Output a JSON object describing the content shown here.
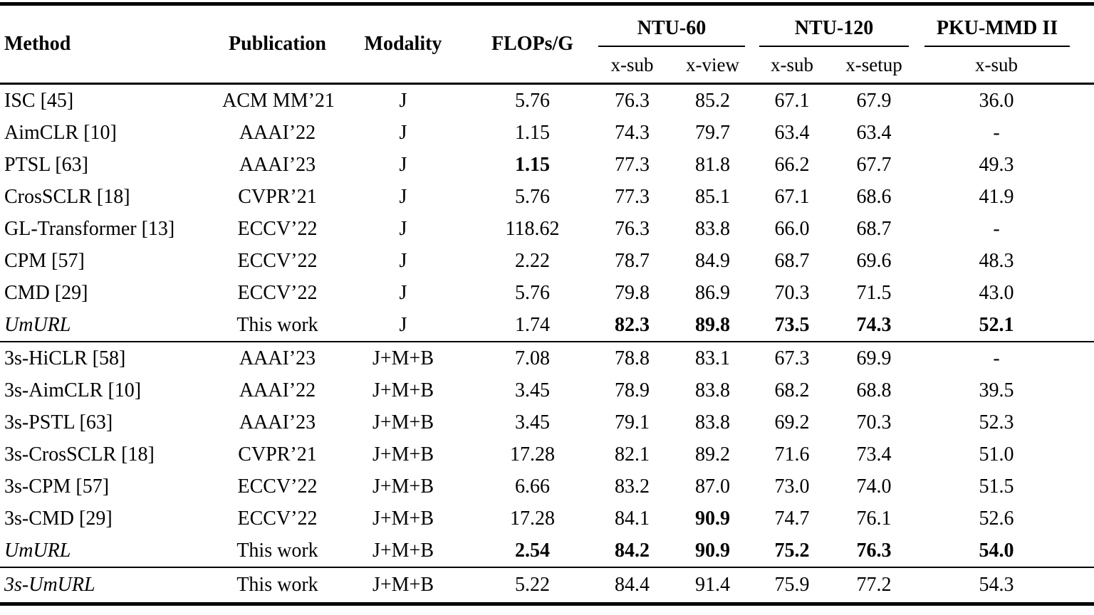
{
  "page": {
    "background": "#ffffff",
    "text_color": "#000000"
  },
  "table": {
    "headers": {
      "method": "Method",
      "publication": "Publication",
      "modality": "Modality",
      "flops": "FLOPs/G"
    },
    "groups": [
      {
        "label": "NTU-60",
        "cols": [
          "x-sub",
          "x-view"
        ]
      },
      {
        "label": "NTU-120",
        "cols": [
          "x-sub",
          "x-setup"
        ]
      },
      {
        "label": "PKU-MMD II",
        "cols": [
          "x-sub"
        ]
      }
    ],
    "sections": [
      {
        "rows": [
          {
            "method": "ISC [45]",
            "italic": false,
            "publication": "ACM MM’21",
            "modality": "J",
            "values": [
              "5.76",
              "76.3",
              "85.2",
              "67.1",
              "67.9",
              "36.0"
            ],
            "bold": [
              0,
              0,
              0,
              0,
              0,
              0
            ]
          },
          {
            "method": "AimCLR [10]",
            "italic": false,
            "publication": "AAAI’22",
            "modality": "J",
            "values": [
              "1.15",
              "74.3",
              "79.7",
              "63.4",
              "63.4",
              "-"
            ],
            "bold": [
              0,
              0,
              0,
              0,
              0,
              0
            ]
          },
          {
            "method": "PTSL [63]",
            "italic": false,
            "publication": "AAAI’23",
            "modality": "J",
            "values": [
              "1.15",
              "77.3",
              "81.8",
              "66.2",
              "67.7",
              "49.3"
            ],
            "bold": [
              1,
              0,
              0,
              0,
              0,
              0
            ]
          },
          {
            "method": "CrosSCLR [18]",
            "italic": false,
            "publication": "CVPR’21",
            "modality": "J",
            "values": [
              "5.76",
              "77.3",
              "85.1",
              "67.1",
              "68.6",
              "41.9"
            ],
            "bold": [
              0,
              0,
              0,
              0,
              0,
              0
            ]
          },
          {
            "method": "GL-Transformer [13]",
            "italic": false,
            "publication": "ECCV’22",
            "modality": "J",
            "values": [
              "118.62",
              "76.3",
              "83.8",
              "66.0",
              "68.7",
              "-"
            ],
            "bold": [
              0,
              0,
              0,
              0,
              0,
              0
            ]
          },
          {
            "method": "CPM [57]",
            "italic": false,
            "publication": "ECCV’22",
            "modality": "J",
            "values": [
              "2.22",
              "78.7",
              "84.9",
              "68.7",
              "69.6",
              "48.3"
            ],
            "bold": [
              0,
              0,
              0,
              0,
              0,
              0
            ]
          },
          {
            "method": "CMD [29]",
            "italic": false,
            "publication": "ECCV’22",
            "modality": "J",
            "values": [
              "5.76",
              "79.8",
              "86.9",
              "70.3",
              "71.5",
              "43.0"
            ],
            "bold": [
              0,
              0,
              0,
              0,
              0,
              0
            ]
          },
          {
            "method": "UmURL",
            "italic": true,
            "publication": "This work",
            "modality": "J",
            "values": [
              "1.74",
              "82.3",
              "89.8",
              "73.5",
              "74.3",
              "52.1"
            ],
            "bold": [
              0,
              1,
              1,
              1,
              1,
              1
            ]
          }
        ]
      },
      {
        "rows": [
          {
            "method": "3s-HiCLR [58]",
            "italic": false,
            "publication": "AAAI’23",
            "modality": "J+M+B",
            "values": [
              "7.08",
              "78.8",
              "83.1",
              "67.3",
              "69.9",
              "-"
            ],
            "bold": [
              0,
              0,
              0,
              0,
              0,
              0
            ]
          },
          {
            "method": "3s-AimCLR [10]",
            "italic": false,
            "publication": "AAAI’22",
            "modality": "J+M+B",
            "values": [
              "3.45",
              "78.9",
              "83.8",
              "68.2",
              "68.8",
              "39.5"
            ],
            "bold": [
              0,
              0,
              0,
              0,
              0,
              0
            ]
          },
          {
            "method": "3s-PSTL [63]",
            "italic": false,
            "publication": "AAAI’23",
            "modality": "J+M+B",
            "values": [
              "3.45",
              "79.1",
              "83.8",
              "69.2",
              "70.3",
              "52.3"
            ],
            "bold": [
              0,
              0,
              0,
              0,
              0,
              0
            ]
          },
          {
            "method": "3s-CrosSCLR [18]",
            "italic": false,
            "publication": "CVPR’21",
            "modality": "J+M+B",
            "values": [
              "17.28",
              "82.1",
              "89.2",
              "71.6",
              "73.4",
              "51.0"
            ],
            "bold": [
              0,
              0,
              0,
              0,
              0,
              0
            ]
          },
          {
            "method": "3s-CPM [57]",
            "italic": false,
            "publication": "ECCV’22",
            "modality": "J+M+B",
            "values": [
              "6.66",
              "83.2",
              "87.0",
              "73.0",
              "74.0",
              "51.5"
            ],
            "bold": [
              0,
              0,
              0,
              0,
              0,
              0
            ]
          },
          {
            "method": "3s-CMD [29]",
            "italic": false,
            "publication": "ECCV’22",
            "modality": "J+M+B",
            "values": [
              "17.28",
              "84.1",
              "90.9",
              "74.7",
              "76.1",
              "52.6"
            ],
            "bold": [
              0,
              0,
              1,
              0,
              0,
              0
            ]
          },
          {
            "method": "UmURL",
            "italic": true,
            "publication": "This work",
            "modality": "J+M+B",
            "values": [
              "2.54",
              "84.2",
              "90.9",
              "75.2",
              "76.3",
              "54.0"
            ],
            "bold": [
              1,
              1,
              1,
              1,
              1,
              1
            ]
          }
        ]
      },
      {
        "rows": [
          {
            "method": "3s-UmURL",
            "italic": true,
            "publication": "This work",
            "modality": "J+M+B",
            "values": [
              "5.22",
              "84.4",
              "91.4",
              "75.9",
              "77.2",
              "54.3"
            ],
            "bold": [
              0,
              0,
              0,
              0,
              0,
              0
            ]
          }
        ]
      }
    ]
  },
  "chart_data": {
    "type": "table",
    "columns": [
      "Method",
      "Publication",
      "Modality",
      "FLOPs/G",
      "NTU-60 x-sub",
      "NTU-60 x-view",
      "NTU-120 x-sub",
      "NTU-120 x-setup",
      "PKU-MMD II x-sub"
    ],
    "rows": [
      [
        "ISC [45]",
        "ACM MM’21",
        "J",
        "5.76",
        "76.3",
        "85.2",
        "67.1",
        "67.9",
        "36.0"
      ],
      [
        "AimCLR [10]",
        "AAAI’22",
        "J",
        "1.15",
        "74.3",
        "79.7",
        "63.4",
        "63.4",
        "-"
      ],
      [
        "PTSL [63]",
        "AAAI’23",
        "J",
        "1.15",
        "77.3",
        "81.8",
        "66.2",
        "67.7",
        "49.3"
      ],
      [
        "CrosSCLR [18]",
        "CVPR’21",
        "J",
        "5.76",
        "77.3",
        "85.1",
        "67.1",
        "68.6",
        "41.9"
      ],
      [
        "GL-Transformer [13]",
        "ECCV’22",
        "J",
        "118.62",
        "76.3",
        "83.8",
        "66.0",
        "68.7",
        "-"
      ],
      [
        "CPM [57]",
        "ECCV’22",
        "J",
        "2.22",
        "78.7",
        "84.9",
        "68.7",
        "69.6",
        "48.3"
      ],
      [
        "CMD [29]",
        "ECCV’22",
        "J",
        "5.76",
        "79.8",
        "86.9",
        "70.3",
        "71.5",
        "43.0"
      ],
      [
        "UmURL",
        "This work",
        "J",
        "1.74",
        "82.3",
        "89.8",
        "73.5",
        "74.3",
        "52.1"
      ],
      [
        "3s-HiCLR [58]",
        "AAAI’23",
        "J+M+B",
        "7.08",
        "78.8",
        "83.1",
        "67.3",
        "69.9",
        "-"
      ],
      [
        "3s-AimCLR [10]",
        "AAAI’22",
        "J+M+B",
        "3.45",
        "78.9",
        "83.8",
        "68.2",
        "68.8",
        "39.5"
      ],
      [
        "3s-PSTL [63]",
        "AAAI’23",
        "J+M+B",
        "3.45",
        "79.1",
        "83.8",
        "69.2",
        "70.3",
        "52.3"
      ],
      [
        "3s-CrosSCLR [18]",
        "CVPR’21",
        "J+M+B",
        "17.28",
        "82.1",
        "89.2",
        "71.6",
        "73.4",
        "51.0"
      ],
      [
        "3s-CPM [57]",
        "ECCV’22",
        "J+M+B",
        "6.66",
        "83.2",
        "87.0",
        "73.0",
        "74.0",
        "51.5"
      ],
      [
        "3s-CMD [29]",
        "ECCV’22",
        "J+M+B",
        "17.28",
        "84.1",
        "90.9",
        "74.7",
        "76.1",
        "52.6"
      ],
      [
        "UmURL",
        "This work",
        "J+M+B",
        "2.54",
        "84.2",
        "90.9",
        "75.2",
        "76.3",
        "54.0"
      ],
      [
        "3s-UmURL",
        "This work",
        "J+M+B",
        "5.22",
        "84.4",
        "91.4",
        "75.9",
        "77.2",
        "54.3"
      ]
    ]
  }
}
